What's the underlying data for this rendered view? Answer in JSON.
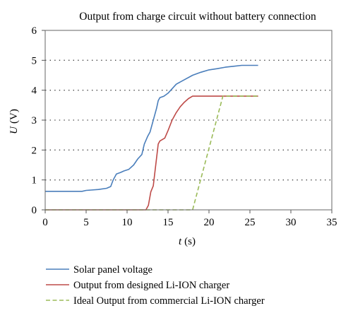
{
  "chart_data": {
    "type": "line",
    "title": "Output from charge circuit without battery connection",
    "xlabel_var": "t",
    "xlabel_unit": "(s)",
    "ylabel_var": "U",
    "ylabel_unit": "(V)",
    "xlim": [
      0,
      35
    ],
    "ylim": [
      0,
      6
    ],
    "x_ticks": [
      0,
      5,
      10,
      15,
      20,
      25,
      30,
      35
    ],
    "y_ticks": [
      0,
      1,
      2,
      3,
      4,
      5,
      6
    ],
    "grid": "dotted horizontal",
    "legend_position": "bottom",
    "series": [
      {
        "name": "Solar panel voltage",
        "color": "#4a7ebb",
        "dash": "solid",
        "x": [
          0,
          4.5,
          5,
          6.5,
          7.5,
          8,
          8.3,
          8.7,
          9.2,
          9.6,
          10.2,
          10.8,
          11.3,
          11.8,
          12.1,
          12.5,
          12.8,
          13.0,
          13.3,
          13.6,
          13.8,
          14.0,
          14.5,
          15.0,
          15.5,
          16.0,
          17.0,
          18.0,
          19.0,
          20.0,
          21.0,
          22.0,
          23.0,
          24.0,
          25.0,
          26.0
        ],
        "y": [
          0.62,
          0.62,
          0.65,
          0.68,
          0.72,
          0.78,
          1.0,
          1.2,
          1.25,
          1.3,
          1.35,
          1.5,
          1.7,
          1.85,
          2.2,
          2.45,
          2.6,
          2.8,
          3.1,
          3.4,
          3.65,
          3.75,
          3.8,
          3.9,
          4.05,
          4.2,
          4.35,
          4.5,
          4.6,
          4.68,
          4.72,
          4.77,
          4.8,
          4.83,
          4.83,
          4.83
        ]
      },
      {
        "name": "Output from designed Li-ION charger",
        "color": "#be4b48",
        "dash": "solid",
        "x": [
          0,
          12.3,
          12.6,
          12.9,
          13.2,
          13.5,
          13.8,
          14.0,
          14.6,
          15.0,
          15.5,
          16.0,
          16.5,
          17.0,
          17.5,
          18.0,
          20,
          22,
          24,
          26
        ],
        "y": [
          0,
          0,
          0.15,
          0.6,
          0.8,
          1.5,
          2.2,
          2.3,
          2.4,
          2.65,
          3.0,
          3.25,
          3.45,
          3.6,
          3.72,
          3.8,
          3.8,
          3.8,
          3.8,
          3.8
        ]
      },
      {
        "name": "Ideal Output from commercial Li-ION charger",
        "color": "#9bbb59",
        "dash": "dashed",
        "x": [
          0,
          18.0,
          21.7,
          26.0
        ],
        "y": [
          0,
          0,
          3.8,
          3.8
        ]
      }
    ]
  }
}
